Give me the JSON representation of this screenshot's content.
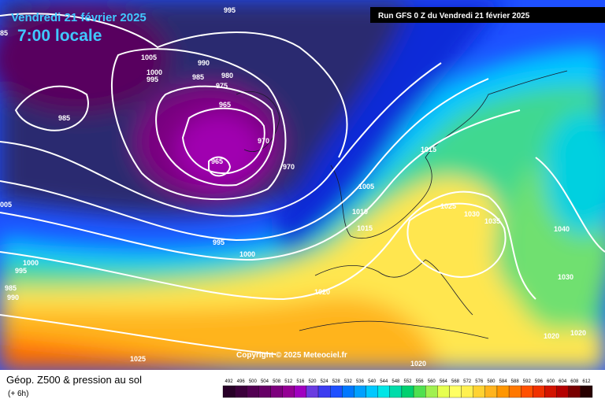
{
  "header": {
    "date": "Vendredi 21 février 2025",
    "time": "7:00 locale",
    "run": "Run GFS 0 Z du Vendredi 21 février 2025"
  },
  "copyright": "Copyright © 2025 Meteociel.fr",
  "isobar_labels": [
    "995",
    "85",
    "1005",
    "990",
    "1000",
    "995",
    "985",
    "980",
    "975",
    "965",
    "985",
    "970",
    "965",
    "970",
    "005",
    "1015",
    "1005",
    "1010",
    "1015",
    "1025",
    "1030",
    "1035",
    "1040",
    "995",
    "1000",
    "1000",
    "995",
    "985",
    "990",
    "1020",
    "1030",
    "1020",
    "1020",
    "1025",
    "1020"
  ],
  "legend": {
    "title": "Géop. Z500 & pression au sol",
    "subtitle": "(+ 6h)",
    "levels": [
      492,
      496,
      500,
      504,
      508,
      512,
      516,
      520,
      524,
      528,
      532,
      536,
      540,
      544,
      548,
      552,
      556,
      560,
      564,
      568,
      572,
      576,
      580,
      584,
      588,
      592,
      596,
      600,
      604,
      608,
      612
    ],
    "colors": [
      "#280028",
      "#3c003c",
      "#520052",
      "#660066",
      "#7d007d",
      "#940094",
      "#a000c0",
      "#6a3ce0",
      "#3c3cf0",
      "#1e50ff",
      "#0078ff",
      "#00a0ff",
      "#00c8ff",
      "#00e6e6",
      "#00dcaa",
      "#00d070",
      "#50e050",
      "#a0f050",
      "#e6ff50",
      "#ffff64",
      "#fff050",
      "#ffd232",
      "#ffb41e",
      "#ff9600",
      "#ff7800",
      "#ff5000",
      "#f03200",
      "#d21400",
      "#b40000",
      "#780000",
      "#280000"
    ]
  }
}
